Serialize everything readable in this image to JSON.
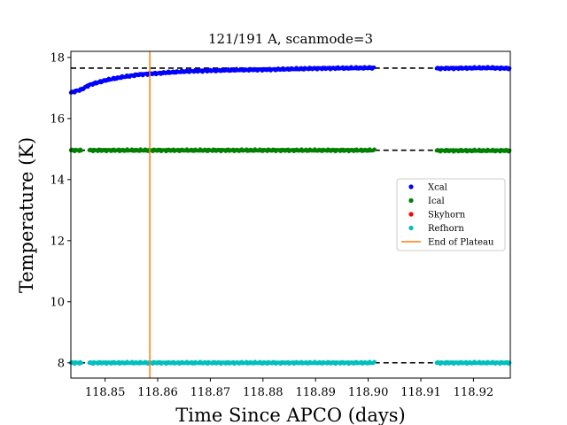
{
  "chart_data": {
    "type": "scatter",
    "title": "121/191 A, scanmode=3",
    "xlabel": "Time Since APCO (days)",
    "ylabel": "Temperature (K)",
    "xlim": [
      118.8435,
      118.927
    ],
    "ylim": [
      7.5,
      18.2
    ],
    "x_ticks": [
      118.85,
      118.86,
      118.87,
      118.88,
      118.89,
      118.9,
      118.91,
      118.92
    ],
    "x_tick_labels": [
      "118.85",
      "118.86",
      "118.87",
      "118.88",
      "118.89",
      "118.90",
      "118.91",
      "118.92"
    ],
    "y_ticks": [
      8,
      10,
      12,
      14,
      16,
      18
    ],
    "y_tick_labels": [
      "8",
      "10",
      "12",
      "14",
      "16",
      "18"
    ],
    "grid": false,
    "legend_position": "center-right",
    "gap": [
      118.9012,
      118.913
    ],
    "series": [
      {
        "name": "Xcal",
        "color": "#0000ff",
        "segments": [
          [
            [
              118.8435,
              16.85
            ],
            [
              118.8455,
              16.95
            ],
            [
              118.847,
              17.1
            ],
            [
              118.85,
              17.25
            ],
            [
              118.853,
              17.35
            ],
            [
              118.856,
              17.43
            ],
            [
              118.858,
              17.46
            ],
            [
              118.86,
              17.48
            ],
            [
              118.863,
              17.52
            ],
            [
              118.866,
              17.55
            ],
            [
              118.87,
              17.57
            ],
            [
              118.875,
              17.59
            ],
            [
              118.88,
              17.6
            ],
            [
              118.885,
              17.62
            ],
            [
              118.89,
              17.64
            ],
            [
              118.895,
              17.65
            ],
            [
              118.9012,
              17.66
            ]
          ],
          [
            [
              118.913,
              17.64
            ],
            [
              118.918,
              17.65
            ],
            [
              118.923,
              17.66
            ],
            [
              118.927,
              17.64
            ]
          ]
        ]
      },
      {
        "name": "Ical",
        "color": "#008000",
        "segments": [
          [
            [
              118.8435,
              14.96
            ],
            [
              118.8455,
              14.96
            ]
          ],
          [
            [
              118.847,
              14.96
            ],
            [
              118.9012,
              14.96
            ]
          ],
          [
            [
              118.913,
              14.95
            ],
            [
              118.927,
              14.95
            ]
          ]
        ]
      },
      {
        "name": "Skyhorn",
        "color": "#ff0000",
        "segments": []
      },
      {
        "name": "Refhorn",
        "color": "#00bfbf",
        "segments": [
          [
            [
              118.8435,
              8.0
            ],
            [
              118.8455,
              8.0
            ]
          ],
          [
            [
              118.847,
              8.0
            ],
            [
              118.9012,
              8.0
            ]
          ],
          [
            [
              118.913,
              8.0
            ],
            [
              118.927,
              8.0
            ]
          ]
        ]
      }
    ],
    "reference_lines": [
      {
        "type": "horizontal",
        "y": 17.65,
        "style": "dashed",
        "color": "#000000"
      },
      {
        "type": "horizontal",
        "y": 14.96,
        "style": "dashed",
        "color": "#000000"
      },
      {
        "type": "horizontal",
        "y": 8.0,
        "style": "dashed",
        "color": "#000000"
      }
    ],
    "vertical_line": {
      "name": "End of Plateau",
      "x": 118.8585,
      "color": "#ff7f0e"
    }
  }
}
